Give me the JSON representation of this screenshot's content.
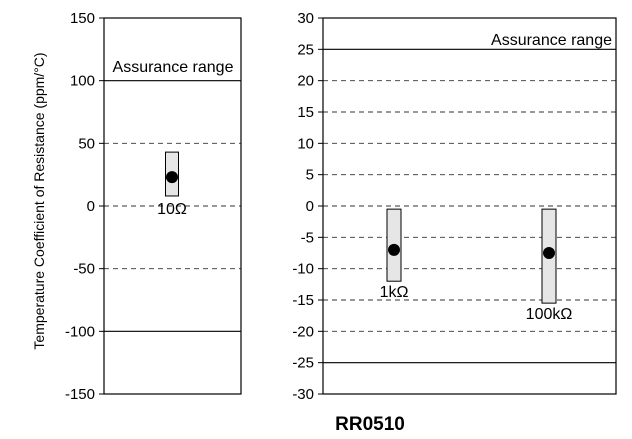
{
  "ylabel": "Temperature Coefficient of Resistance (ppm/°C)",
  "caption": "RR0510",
  "chart_data": [
    {
      "type": "range",
      "ylim": [
        -150,
        150
      ],
      "yticks": [
        "150",
        "100",
        "50",
        "0",
        "-50",
        "-100",
        "-150"
      ],
      "assurance_limits": [
        100,
        -100
      ],
      "dashed_grid": [
        50,
        0,
        -50
      ],
      "annotation": "Assurance range",
      "points": [
        {
          "label": "10Ω",
          "low": 8,
          "high": 43,
          "value": 23
        }
      ]
    },
    {
      "type": "range",
      "ylim": [
        -30,
        30
      ],
      "yticks": [
        "30",
        "25",
        "20",
        "15",
        "10",
        "5",
        "0",
        "-5",
        "-10",
        "-15",
        "-20",
        "-25",
        "-30"
      ],
      "assurance_limits": [
        25,
        -25
      ],
      "dashed_grid": [
        20,
        15,
        10,
        5,
        0,
        -5,
        -10,
        -15,
        -20
      ],
      "annotation": "Assurance range",
      "points": [
        {
          "label": "1kΩ",
          "low": -12,
          "high": -0.5,
          "value": -7
        },
        {
          "label": "100kΩ",
          "low": -15.5,
          "high": -0.5,
          "value": -7.5
        }
      ]
    }
  ]
}
